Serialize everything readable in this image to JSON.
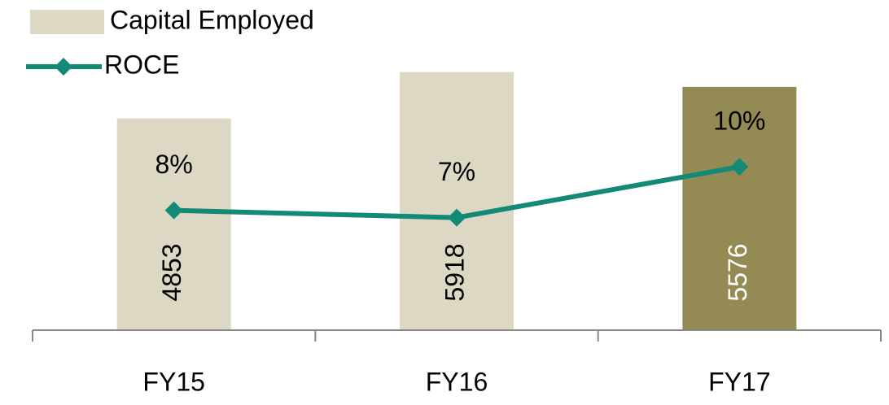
{
  "chart_data": {
    "type": "bar-line",
    "categories": [
      "FY15",
      "FY16",
      "FY17"
    ],
    "series": [
      {
        "name": "Capital Employed",
        "type": "bar",
        "color": "#ddd8c3",
        "colors": [
          "#ddd8c3",
          "#ddd8c3",
          "#948b54"
        ],
        "label_colors": [
          "#000000",
          "#000000",
          "#ffffff"
        ],
        "values": [
          4853,
          5918,
          5576
        ]
      },
      {
        "name": "ROCE",
        "type": "line",
        "axis": "y2",
        "color": "#138a75",
        "values": [
          7.6,
          7.2,
          10.0
        ],
        "value_labels": [
          "8%",
          "7%",
          "10%"
        ]
      }
    ],
    "ylim": [
      0,
      6450
    ],
    "y2lim": [
      1,
      16.5
    ]
  }
}
